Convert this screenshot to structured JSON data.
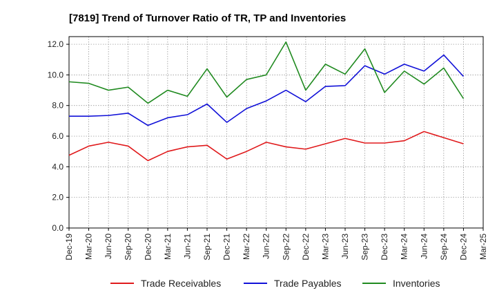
{
  "chart_data": {
    "type": "line",
    "title": "[7819]  Trend of Turnover Ratio of TR, TP and Inventories",
    "xlabel": "",
    "ylabel": "",
    "ylim": [
      0,
      12.5
    ],
    "yticks": [
      "0.0",
      "2.0",
      "4.0",
      "6.0",
      "8.0",
      "10.0",
      "12.0"
    ],
    "x_tick_labels": [
      "Dec-19",
      "Mar-20",
      "Jun-20",
      "Sep-20",
      "Dec-20",
      "Mar-21",
      "Jun-21",
      "Sep-21",
      "Dec-21",
      "Mar-22",
      "Jun-22",
      "Sep-22",
      "Dec-22",
      "Mar-23",
      "Jun-23",
      "Sep-23",
      "Dec-23",
      "Mar-24",
      "Jun-24",
      "Sep-24",
      "Dec-24",
      "Mar-25"
    ],
    "x": [
      "Dec-19",
      "Mar-20",
      "Jun-20",
      "Sep-20",
      "Dec-20",
      "Mar-21",
      "Jun-21",
      "Sep-21",
      "Dec-21",
      "Mar-22",
      "Jun-22",
      "Sep-22",
      "Dec-22",
      "Mar-23",
      "Jun-23",
      "Sep-23",
      "Dec-23",
      "Mar-24",
      "Jun-24",
      "Sep-24",
      "Dec-24"
    ],
    "grid": true,
    "legend_position": "bottom",
    "series": [
      {
        "name": "Trade Receivables",
        "color": "#e0191b",
        "values": [
          4.75,
          5.35,
          5.6,
          5.35,
          4.4,
          5.0,
          5.3,
          5.4,
          4.5,
          5.0,
          5.6,
          5.3,
          5.15,
          5.5,
          5.85,
          5.55,
          5.55,
          5.7,
          6.3,
          5.9,
          5.5
        ]
      },
      {
        "name": "Trade Payables",
        "color": "#1010d8",
        "values": [
          7.3,
          7.3,
          7.35,
          7.5,
          6.7,
          7.2,
          7.4,
          8.1,
          6.9,
          7.8,
          8.3,
          9.0,
          8.25,
          9.25,
          9.3,
          10.6,
          10.05,
          10.7,
          10.25,
          11.3,
          9.9
        ]
      },
      {
        "name": "Inventories",
        "color": "#1f8a1f",
        "values": [
          9.55,
          9.45,
          9.0,
          9.2,
          8.15,
          9.0,
          8.6,
          10.4,
          8.55,
          9.7,
          10.0,
          12.15,
          9.0,
          10.7,
          10.05,
          11.7,
          8.85,
          10.25,
          9.4,
          10.45,
          8.45
        ]
      }
    ]
  }
}
